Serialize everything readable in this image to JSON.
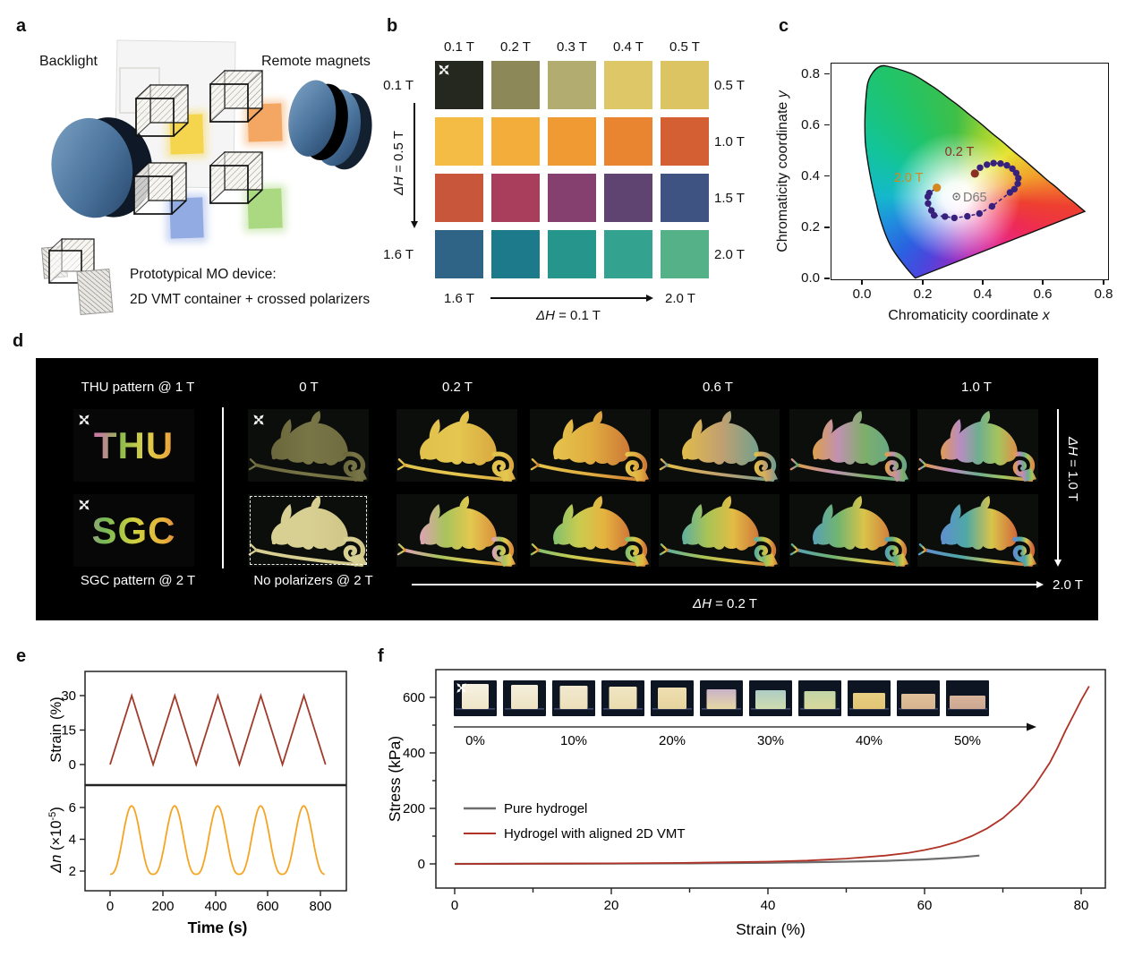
{
  "panel_a": {
    "letter": "a",
    "backlight_label": "Backlight",
    "magnets_label": "Remote magnets",
    "caption1": "Prototypical MO device:",
    "caption2": "2D VMT container + crossed polarizers",
    "films": {
      "yellow": "#f6d54e",
      "orange": "#f4a763",
      "blue": "#92abe3",
      "green": "#abd982"
    }
  },
  "panel_b": {
    "letter": "b",
    "col_headers": [
      "0.1 T",
      "0.2 T",
      "0.3 T",
      "0.4 T",
      "0.5 T"
    ],
    "right_labels": [
      "0.5 T",
      "1.0 T",
      "1.5 T",
      "2.0 T"
    ],
    "left_top_label": "0.1 T",
    "left_bottom_label": "1.6 T",
    "left_arrow_italic": "ΔH",
    "left_arrow_rest": " = 0.5 T",
    "bottom_left_label": "1.6 T",
    "bottom_right_label": "2.0 T",
    "bottom_arrow_italic": "ΔH",
    "bottom_arrow_rest": " = 0.1 T",
    "swatches": [
      [
        "#24281f",
        "#8c8857",
        "#b2ac71",
        "#ddc766",
        "#dbc461"
      ],
      [
        "#f4bc45",
        "#f3ad3a",
        "#f09a33",
        "#e98430",
        "#d35f33"
      ],
      [
        "#c8563a",
        "#a93d5c",
        "#86406f",
        "#5f4472",
        "#3f5383"
      ],
      [
        "#2f6487",
        "#1d7a8a",
        "#26968c",
        "#33a28f",
        "#55b188"
      ]
    ]
  },
  "panel_c": {
    "letter": "c",
    "xlabel_main": "Chromaticity coordinate ",
    "xlabel_var": "x",
    "ylabel_main": "Chromaticity coordinate ",
    "ylabel_var": "y",
    "x_ticks": [
      "0.0",
      "0.2",
      "0.4",
      "0.6",
      "0.8"
    ],
    "y_ticks": [
      "0.8",
      "0.6",
      "0.4",
      "0.2",
      "0.0"
    ],
    "start_label": "0.2 T",
    "end_label": "2.0 T",
    "d65_label": "D65",
    "chart_data": {
      "type": "scatter",
      "title": "CIE chromaticity trajectory of MO device color vs magnetic field",
      "xlabel": "Chromaticity coordinate x",
      "ylabel": "Chromaticity coordinate y",
      "xlim": [
        -0.09,
        0.81
      ],
      "ylim": [
        0,
        0.843
      ],
      "start": {
        "label": "0.2 T",
        "xy": [
          0.371,
          0.413
        ],
        "color": "#8b2f23"
      },
      "end": {
        "label": "2.0 T",
        "xy": [
          0.245,
          0.358
        ],
        "color": "#d4881f"
      },
      "d65": {
        "label": "D65",
        "xy": [
          0.31,
          0.323
        ]
      },
      "trajectory_color": "#38217d",
      "trajectory": [
        [
          0.388,
          0.436
        ],
        [
          0.411,
          0.448
        ],
        [
          0.433,
          0.454
        ],
        [
          0.456,
          0.452
        ],
        [
          0.477,
          0.445
        ],
        [
          0.495,
          0.432
        ],
        [
          0.508,
          0.415
        ],
        [
          0.515,
          0.395
        ],
        [
          0.513,
          0.373
        ],
        [
          0.502,
          0.352
        ],
        [
          0.487,
          0.339
        ],
        [
          0.428,
          0.285
        ],
        [
          0.386,
          0.257
        ],
        [
          0.346,
          0.246
        ],
        [
          0.303,
          0.24
        ],
        [
          0.272,
          0.245
        ],
        [
          0.236,
          0.25
        ],
        [
          0.227,
          0.269
        ],
        [
          0.216,
          0.296
        ],
        [
          0.215,
          0.323
        ],
        [
          0.22,
          0.337
        ]
      ]
    }
  },
  "panel_d": {
    "letter": "d",
    "top_labels": [
      "THU pattern @ 1 T",
      "0 T",
      "0.2 T",
      "0.6 T",
      "1.0 T"
    ],
    "thu_text": "THU",
    "sgc_text": "SGC",
    "thu_gradient": [
      "#e08a50",
      "#c779a6",
      "#90bc4c",
      "#ddd04a",
      "#e8a53c",
      "#cf4f36"
    ],
    "sgc_gradient": [
      "#d57fb5",
      "#74b857",
      "#cfd13f",
      "#e8b23c",
      "#cf4e38"
    ],
    "sgc_caption": "SGC pattern @ 2 T",
    "nopol_caption": "No polarizers @ 2 T",
    "bottom_arrow_italic": "ΔH",
    "bottom_arrow_rest": " = 0.2 T",
    "right_arrow_italic": "ΔH",
    "right_arrow_rest": " = 1.0 T",
    "end_label": "2.0 T",
    "row_top": [
      {
        "colors": [
          "#6a673c",
          "#787547",
          "#6f6c3f"
        ]
      },
      {
        "colors": [
          "#e0c14c",
          "#e4c650",
          "#d9a93f"
        ]
      },
      {
        "colors": [
          "#e5c44c",
          "#e0ac40",
          "#cd7a36"
        ]
      },
      {
        "colors": [
          "#e0bc4a",
          "#c2a070",
          "#74a08c"
        ]
      },
      {
        "colors": [
          "#dd9f4d",
          "#c091b2",
          "#7fae6a",
          "#67a884"
        ]
      },
      {
        "colors": [
          "#e09a55",
          "#b98cc2",
          "#6fae8f",
          "#a6c45c",
          "#dd8f4a"
        ]
      }
    ],
    "row_bottom": [
      {
        "colors": [
          "#d8cf92",
          "#d8cf92",
          "#cfc687"
        ],
        "dashed": true
      },
      {
        "colors": [
          "#dca3b4",
          "#a8c45c",
          "#e3c84f",
          "#d98f3c"
        ]
      },
      {
        "colors": [
          "#82bf6f",
          "#c9cc4f",
          "#e5b33f",
          "#d07838"
        ]
      },
      {
        "colors": [
          "#5fae9f",
          "#a8c455",
          "#e2bc45",
          "#d0793a"
        ]
      },
      {
        "colors": [
          "#58a0b5",
          "#72b56f",
          "#d9c44a",
          "#d2813c"
        ]
      },
      {
        "colors": [
          "#5f8fd0",
          "#4fa8a5",
          "#d9c44a",
          "#d2683a"
        ]
      }
    ]
  },
  "panel_e": {
    "letter": "e",
    "ylabel_top": "Strain (%)",
    "yticks_top": [
      "30",
      "15",
      "0"
    ],
    "dn_it": "Δn",
    "dn_mid": " (×10",
    "dn_sup": "-5",
    "dn_close": ")",
    "yticks_bottom": [
      "6",
      "4",
      "2"
    ],
    "xlabel": "Time (s)",
    "x_ticks": [
      "0",
      "200",
      "400",
      "600",
      "800"
    ],
    "chart_data": {
      "type": "line",
      "xlabel": "Time (s)",
      "x_range": [
        0,
        860
      ],
      "strain": {
        "ylabel": "Strain (%)",
        "color": "#a03a2a",
        "yticks": [
          0,
          15,
          30
        ],
        "points": [
          [
            0,
            0
          ],
          [
            82,
            30
          ],
          [
            163,
            0
          ],
          [
            245,
            30
          ],
          [
            326,
            0
          ],
          [
            408,
            30
          ],
          [
            490,
            0
          ],
          [
            571,
            30
          ],
          [
            653,
            0
          ],
          [
            734,
            30
          ],
          [
            816,
            0
          ]
        ]
      },
      "birefringence": {
        "ylabel": "Δn (×10^-5)",
        "color": "#f5a424",
        "yticks": [
          2,
          4,
          6
        ],
        "min": 1.8,
        "max": 6.1,
        "period": 163,
        "cycles": 5
      }
    }
  },
  "panel_f": {
    "letter": "f",
    "ylabel": "Stress (kPa)",
    "yticks": [
      "600",
      "400",
      "200",
      "0"
    ],
    "xlabel": "Strain (%)",
    "x_ticks": [
      "0",
      "20",
      "40",
      "60",
      "80"
    ],
    "legend": [
      {
        "label": "Pure hydrogel",
        "color": "#6e6e6e"
      },
      {
        "label": "Hydrogel with aligned 2D VMT",
        "color": "#b03226"
      }
    ],
    "inset": {
      "labels": [
        "0%",
        "10%",
        "20%",
        "30%",
        "40%",
        "50%"
      ],
      "photo_bg": "#0d1522",
      "photos": [
        {
          "w": 30,
          "h": 28,
          "colors": [
            "#f6f1e2",
            "#efe6c8"
          ]
        },
        {
          "w": 30,
          "h": 27,
          "colors": [
            "#f4eedb",
            "#eee3c2"
          ]
        },
        {
          "w": 31,
          "h": 26,
          "colors": [
            "#f2ead0",
            "#ecdfba"
          ]
        },
        {
          "w": 31,
          "h": 25,
          "colors": [
            "#f0e6c4",
            "#eadcae"
          ]
        },
        {
          "w": 32,
          "h": 24,
          "colors": [
            "#eedfb2",
            "#e6d49e"
          ]
        },
        {
          "w": 33,
          "h": 22,
          "colors": [
            "#c9b2c8",
            "#e6d8a4"
          ]
        },
        {
          "w": 34,
          "h": 21,
          "colors": [
            "#aecdc6",
            "#cfdcae"
          ]
        },
        {
          "w": 35,
          "h": 20,
          "colors": [
            "#c2d6a8",
            "#d8d89a"
          ]
        },
        {
          "w": 36,
          "h": 18,
          "colors": [
            "#e8cf82",
            "#e2c474"
          ]
        },
        {
          "w": 38,
          "h": 17,
          "colors": [
            "#dec09a",
            "#d6b490"
          ]
        },
        {
          "w": 40,
          "h": 15,
          "colors": [
            "#d8b49c",
            "#cda890"
          ]
        }
      ]
    },
    "chart_data": {
      "type": "line",
      "xlabel": "Strain (%)",
      "ylabel": "Stress (kPa)",
      "xlim": [
        0,
        83
      ],
      "ylim": [
        -60,
        700
      ],
      "series": [
        {
          "name": "Pure hydrogel",
          "color": "#6e6e6e",
          "points": [
            [
              0,
              0
            ],
            [
              10,
              0.5
            ],
            [
              20,
              1
            ],
            [
              30,
              2
            ],
            [
              40,
              4
            ],
            [
              50,
              8
            ],
            [
              55,
              11
            ],
            [
              60,
              16
            ],
            [
              63,
              21
            ],
            [
              65,
              25
            ],
            [
              67,
              30
            ]
          ]
        },
        {
          "name": "Hydrogel with aligned 2D VMT",
          "color": "#b03226",
          "points": [
            [
              0,
              0
            ],
            [
              10,
              1
            ],
            [
              20,
              2
            ],
            [
              30,
              4
            ],
            [
              40,
              8
            ],
            [
              45,
              12
            ],
            [
              50,
              19
            ],
            [
              55,
              30
            ],
            [
              58,
              40
            ],
            [
              60,
              50
            ],
            [
              62,
              62
            ],
            [
              64,
              78
            ],
            [
              66,
              100
            ],
            [
              68,
              128
            ],
            [
              70,
              165
            ],
            [
              72,
              215
            ],
            [
              74,
              280
            ],
            [
              76,
              365
            ],
            [
              77,
              420
            ],
            [
              78,
              480
            ],
            [
              79,
              535
            ],
            [
              80,
              590
            ],
            [
              81,
              640
            ]
          ]
        }
      ]
    }
  }
}
